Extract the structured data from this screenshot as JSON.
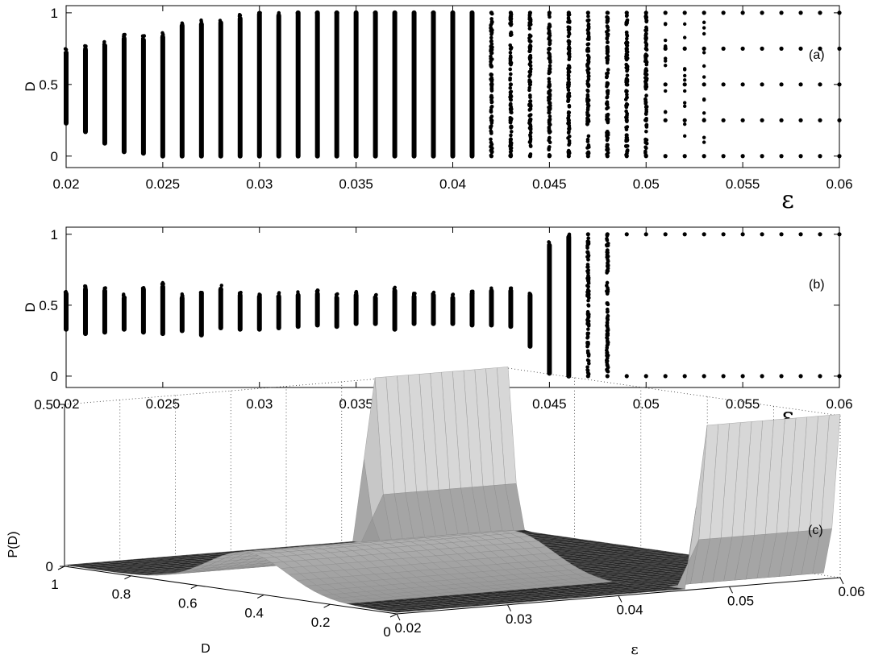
{
  "chart_data": [
    {
      "type": "scatter",
      "panel_label": "(a)",
      "xlabel": "ε",
      "ylabel": "D",
      "xlim": [
        0.02,
        0.06
      ],
      "ylim": [
        -0.08,
        1.05
      ],
      "xticks": [
        0.02,
        0.025,
        0.03,
        0.035,
        0.04,
        0.045,
        0.05,
        0.055,
        0.06
      ],
      "xtick_labels": [
        "0.02",
        "0.025",
        "0.03",
        "0.035",
        "0.04",
        "0.045",
        "0.05",
        "0.055",
        "0.06"
      ],
      "yticks": [
        0,
        0.5,
        1
      ],
      "ytick_labels": [
        "0",
        "0.5",
        "1"
      ],
      "grid": false,
      "bands": [
        {
          "x": 0.02,
          "lo": 0.23,
          "hi": 0.72,
          "style": "solid"
        },
        {
          "x": 0.021,
          "lo": 0.17,
          "hi": 0.74,
          "style": "solid"
        },
        {
          "x": 0.022,
          "lo": 0.09,
          "hi": 0.77,
          "style": "solid"
        },
        {
          "x": 0.023,
          "lo": 0.03,
          "hi": 0.82,
          "style": "solid"
        },
        {
          "x": 0.024,
          "lo": 0.02,
          "hi": 0.81,
          "style": "solid"
        },
        {
          "x": 0.025,
          "lo": 0.0,
          "hi": 0.83,
          "style": "solid"
        },
        {
          "x": 0.026,
          "lo": 0.0,
          "hi": 0.91,
          "style": "solid"
        },
        {
          "x": 0.027,
          "lo": 0.0,
          "hi": 0.92,
          "style": "solid"
        },
        {
          "x": 0.028,
          "lo": 0.0,
          "hi": 0.93,
          "style": "solid"
        },
        {
          "x": 0.029,
          "lo": 0.0,
          "hi": 0.96,
          "style": "solid"
        },
        {
          "x": 0.03,
          "lo": 0.0,
          "hi": 0.99,
          "style": "solid"
        },
        {
          "x": 0.031,
          "lo": 0.0,
          "hi": 0.98,
          "style": "solid"
        },
        {
          "x": 0.032,
          "lo": 0.0,
          "hi": 1.0,
          "style": "solid"
        },
        {
          "x": 0.033,
          "lo": 0.0,
          "hi": 1.0,
          "style": "solid"
        },
        {
          "x": 0.034,
          "lo": 0.0,
          "hi": 1.0,
          "style": "solid"
        },
        {
          "x": 0.035,
          "lo": 0.0,
          "hi": 1.0,
          "style": "solid"
        },
        {
          "x": 0.036,
          "lo": 0.0,
          "hi": 1.0,
          "style": "solid"
        },
        {
          "x": 0.037,
          "lo": 0.0,
          "hi": 1.0,
          "style": "solid"
        },
        {
          "x": 0.038,
          "lo": 0.0,
          "hi": 1.0,
          "style": "solid"
        },
        {
          "x": 0.039,
          "lo": 0.0,
          "hi": 1.0,
          "style": "solid"
        },
        {
          "x": 0.04,
          "lo": 0.0,
          "hi": 1.0,
          "style": "solid"
        },
        {
          "x": 0.041,
          "lo": 0.0,
          "hi": 1.0,
          "style": "solid"
        },
        {
          "x": 0.042,
          "lo": 0.0,
          "hi": 1.0,
          "style": "sparse"
        },
        {
          "x": 0.043,
          "lo": 0.0,
          "hi": 1.0,
          "style": "sparse"
        },
        {
          "x": 0.044,
          "lo": 0.0,
          "hi": 1.0,
          "style": "sparse"
        },
        {
          "x": 0.045,
          "lo": 0.0,
          "hi": 1.0,
          "style": "sparse"
        },
        {
          "x": 0.046,
          "lo": 0.0,
          "hi": 1.0,
          "style": "sparse"
        },
        {
          "x": 0.047,
          "lo": 0.0,
          "hi": 1.0,
          "style": "sparse"
        },
        {
          "x": 0.048,
          "lo": 0.0,
          "hi": 1.0,
          "style": "sparse"
        },
        {
          "x": 0.049,
          "lo": 0.0,
          "hi": 1.0,
          "style": "sparse"
        },
        {
          "x": 0.05,
          "lo": 0.0,
          "hi": 1.0,
          "style": "sparse"
        },
        {
          "x": 0.051,
          "lo": 0.0,
          "hi": 1.0,
          "style": "discrete"
        },
        {
          "x": 0.052,
          "lo": 0.0,
          "hi": 1.0,
          "style": "discrete"
        },
        {
          "x": 0.053,
          "lo": 0.0,
          "hi": 1.0,
          "style": "discrete"
        },
        {
          "x": 0.054,
          "lo": 0.0,
          "hi": 1.0,
          "style": "discrete"
        },
        {
          "x": 0.055,
          "lo": 0.0,
          "hi": 1.0,
          "style": "discrete"
        },
        {
          "x": 0.056,
          "lo": 0.0,
          "hi": 1.0,
          "style": "discrete"
        },
        {
          "x": 0.057,
          "lo": 0.0,
          "hi": 1.0,
          "style": "discrete"
        },
        {
          "x": 0.058,
          "lo": 0.0,
          "hi": 1.0,
          "style": "discrete"
        },
        {
          "x": 0.059,
          "lo": 0.0,
          "hi": 1.0,
          "style": "discrete"
        },
        {
          "x": 0.06,
          "lo": 0.0,
          "hi": 1.0,
          "style": "discrete"
        }
      ],
      "discrete_levels": [
        0,
        0.25,
        0.5,
        0.75,
        1
      ]
    },
    {
      "type": "scatter",
      "panel_label": "(b)",
      "xlabel": "ε",
      "ylabel": "D",
      "xlim": [
        0.02,
        0.06
      ],
      "ylim": [
        -0.08,
        1.05
      ],
      "xticks": [
        0.02,
        0.025,
        0.03,
        0.035,
        0.04,
        0.045,
        0.05,
        0.055,
        0.06
      ],
      "xtick_labels": [
        "0.02",
        "0.025",
        "0.03",
        "0.035",
        "0.04",
        "0.045",
        "0.05",
        "0.055",
        "0.06"
      ],
      "yticks": [
        0,
        0.5,
        1
      ],
      "ytick_labels": [
        "0",
        "0.5",
        "1"
      ],
      "grid": false,
      "bands": [
        {
          "x": 0.02,
          "lo": 0.33,
          "hi": 0.58,
          "style": "solid"
        },
        {
          "x": 0.021,
          "lo": 0.3,
          "hi": 0.61,
          "style": "solid"
        },
        {
          "x": 0.022,
          "lo": 0.31,
          "hi": 0.6,
          "style": "solid"
        },
        {
          "x": 0.023,
          "lo": 0.33,
          "hi": 0.55,
          "style": "solid"
        },
        {
          "x": 0.024,
          "lo": 0.31,
          "hi": 0.61,
          "style": "solid"
        },
        {
          "x": 0.025,
          "lo": 0.3,
          "hi": 0.63,
          "style": "solid"
        },
        {
          "x": 0.026,
          "lo": 0.32,
          "hi": 0.55,
          "style": "solid"
        },
        {
          "x": 0.027,
          "lo": 0.29,
          "hi": 0.58,
          "style": "solid"
        },
        {
          "x": 0.028,
          "lo": 0.34,
          "hi": 0.61,
          "style": "solid"
        },
        {
          "x": 0.029,
          "lo": 0.33,
          "hi": 0.57,
          "style": "solid"
        },
        {
          "x": 0.03,
          "lo": 0.33,
          "hi": 0.56,
          "style": "solid"
        },
        {
          "x": 0.031,
          "lo": 0.34,
          "hi": 0.56,
          "style": "solid"
        },
        {
          "x": 0.032,
          "lo": 0.35,
          "hi": 0.57,
          "style": "solid"
        },
        {
          "x": 0.033,
          "lo": 0.36,
          "hi": 0.58,
          "style": "solid"
        },
        {
          "x": 0.034,
          "lo": 0.35,
          "hi": 0.55,
          "style": "solid"
        },
        {
          "x": 0.035,
          "lo": 0.37,
          "hi": 0.57,
          "style": "solid"
        },
        {
          "x": 0.036,
          "lo": 0.37,
          "hi": 0.55,
          "style": "solid"
        },
        {
          "x": 0.037,
          "lo": 0.33,
          "hi": 0.6,
          "style": "solid"
        },
        {
          "x": 0.038,
          "lo": 0.37,
          "hi": 0.56,
          "style": "solid"
        },
        {
          "x": 0.039,
          "lo": 0.37,
          "hi": 0.57,
          "style": "solid"
        },
        {
          "x": 0.04,
          "lo": 0.37,
          "hi": 0.55,
          "style": "solid"
        },
        {
          "x": 0.041,
          "lo": 0.36,
          "hi": 0.58,
          "style": "solid"
        },
        {
          "x": 0.042,
          "lo": 0.36,
          "hi": 0.6,
          "style": "solid"
        },
        {
          "x": 0.043,
          "lo": 0.35,
          "hi": 0.6,
          "style": "solid"
        },
        {
          "x": 0.044,
          "lo": 0.21,
          "hi": 0.57,
          "style": "solid"
        },
        {
          "x": 0.045,
          "lo": 0.02,
          "hi": 0.92,
          "style": "solid"
        },
        {
          "x": 0.046,
          "lo": 0.0,
          "hi": 0.98,
          "style": "solid"
        },
        {
          "x": 0.047,
          "lo": 0.0,
          "hi": 1.0,
          "style": "sparse"
        },
        {
          "x": 0.048,
          "lo": 0.0,
          "hi": 1.0,
          "style": "sparse"
        },
        {
          "x": 0.049,
          "lo": 0.0,
          "hi": 1.0,
          "style": "discrete2"
        },
        {
          "x": 0.05,
          "lo": 0.0,
          "hi": 1.0,
          "style": "discrete2"
        },
        {
          "x": 0.051,
          "lo": 0.0,
          "hi": 1.0,
          "style": "discrete2"
        },
        {
          "x": 0.052,
          "lo": 0.0,
          "hi": 1.0,
          "style": "discrete2"
        },
        {
          "x": 0.053,
          "lo": 0.0,
          "hi": 1.0,
          "style": "discrete2"
        },
        {
          "x": 0.054,
          "lo": 0.0,
          "hi": 1.0,
          "style": "discrete2"
        },
        {
          "x": 0.055,
          "lo": 0.0,
          "hi": 1.0,
          "style": "discrete2"
        },
        {
          "x": 0.056,
          "lo": 0.0,
          "hi": 1.0,
          "style": "discrete2"
        },
        {
          "x": 0.057,
          "lo": 0.0,
          "hi": 1.0,
          "style": "discrete2"
        },
        {
          "x": 0.058,
          "lo": 0.0,
          "hi": 1.0,
          "style": "discrete2"
        },
        {
          "x": 0.059,
          "lo": 0.0,
          "hi": 1.0,
          "style": "discrete2"
        },
        {
          "x": 0.06,
          "lo": 0.0,
          "hi": 1.0,
          "style": "discrete2"
        }
      ],
      "discrete_levels": [
        0,
        1
      ]
    },
    {
      "type": "surface",
      "panel_label": "(c)",
      "xlabel": "ε",
      "ylabel": "D",
      "zlabel": "P(D)",
      "xlim": [
        0.02,
        0.06
      ],
      "ylim": [
        0,
        1
      ],
      "zlim": [
        0,
        0.5
      ],
      "xticks": [
        0.02,
        0.03,
        0.04,
        0.05,
        0.06
      ],
      "xtick_labels": [
        "0.02",
        "0.03",
        "0.04",
        "0.05",
        "0.06"
      ],
      "yticks": [
        0,
        0.2,
        0.4,
        0.6,
        0.8,
        1
      ],
      "ytick_labels": [
        "0",
        "0.2",
        "0.4",
        "0.6",
        "0.8",
        "1"
      ],
      "zticks": [
        0,
        0.5
      ],
      "ztick_labels": [
        "0",
        "0.5"
      ],
      "grid": true,
      "features": [
        {
          "name": "ridge",
          "eps_range": [
            0.02,
            0.044
          ],
          "D_center": 0.45,
          "peak": 0.12
        },
        {
          "name": "wall",
          "eps_range": [
            0.048,
            0.06
          ],
          "D": 0,
          "peak": 0.5
        },
        {
          "name": "wall",
          "eps_range": [
            0.048,
            0.06
          ],
          "D": 1,
          "peak": 0.5
        }
      ]
    }
  ]
}
